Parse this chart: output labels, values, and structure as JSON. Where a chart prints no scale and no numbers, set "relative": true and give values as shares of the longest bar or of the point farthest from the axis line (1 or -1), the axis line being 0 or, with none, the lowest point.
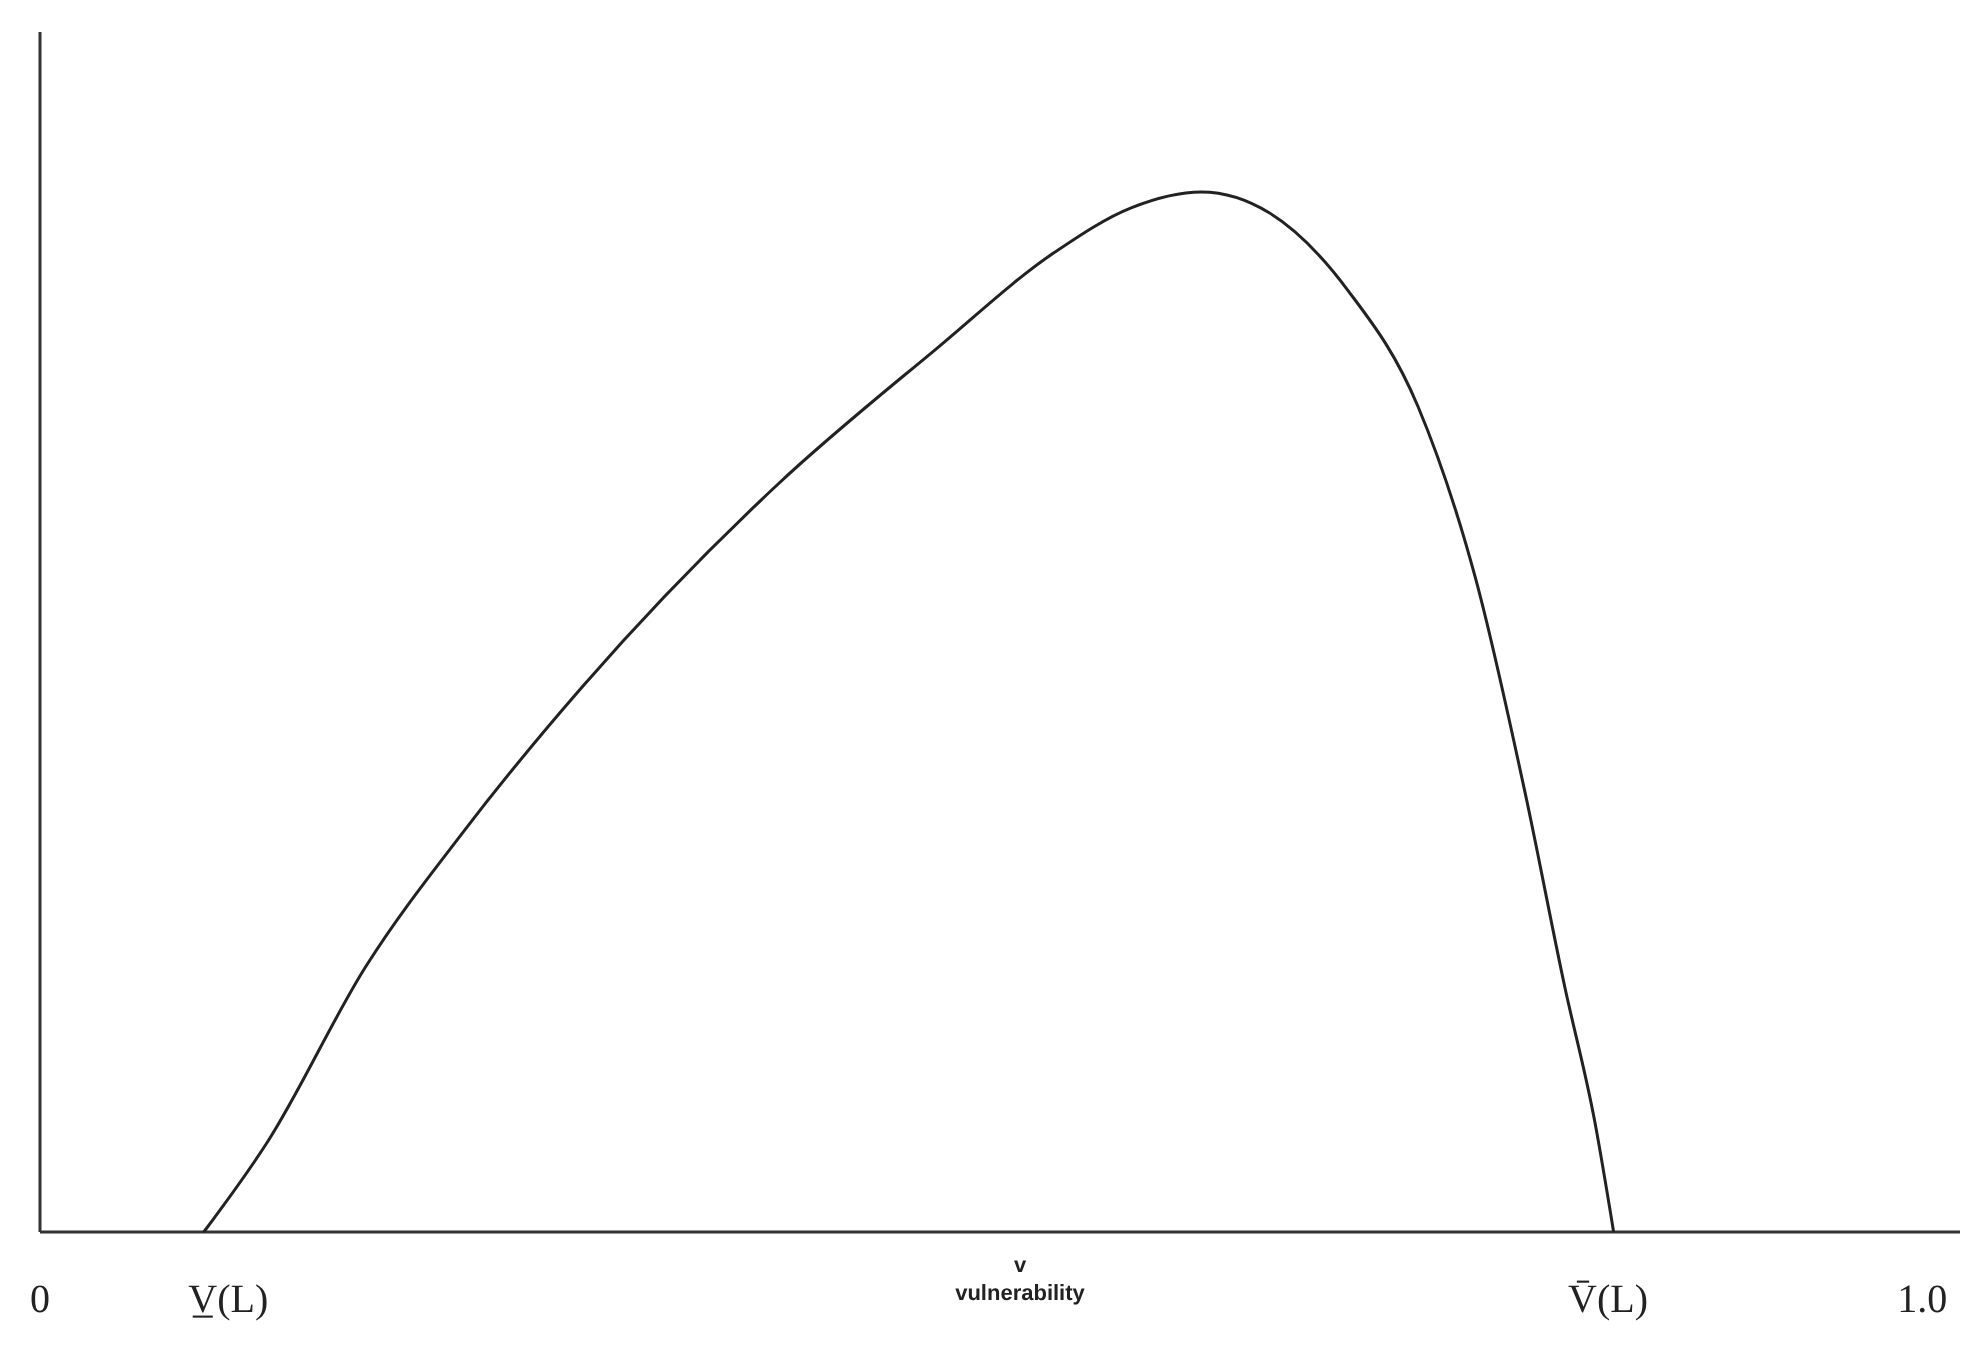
{
  "chart_data": {
    "type": "line",
    "relative": true,
    "xlabel": "v\nvulnerability",
    "xlim": [
      0,
      1.02
    ],
    "xticks": [
      0,
      {
        "value": 0.1,
        "label": "V̲(L)"
      },
      {
        "value": 0.833,
        "label": "V̄(L)"
      },
      {
        "value": 1.0,
        "label": "1.0"
      }
    ],
    "x": [
      0.087,
      0.121,
      0.173,
      0.225,
      0.288,
      0.392,
      0.476,
      0.539,
      0.58,
      0.617,
      0.653,
      0.695,
      0.732,
      0.763,
      0.789,
      0.81,
      0.826,
      0.836
    ],
    "series": [
      {
        "color": "#222222",
        "values": [
          0,
          0.087,
          0.255,
          0.385,
          0.524,
          0.719,
          0.849,
          0.942,
          0.985,
          1,
          0.98,
          0.905,
          0.794,
          0.626,
          0.422,
          0.236,
          0.106,
          0
        ]
      }
    ],
    "marker": "none",
    "line_style": "solid"
  }
}
